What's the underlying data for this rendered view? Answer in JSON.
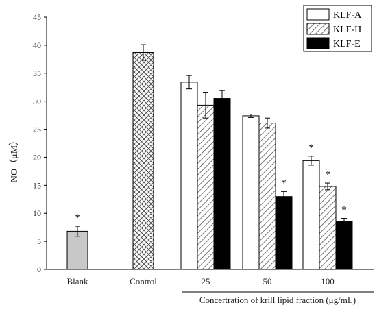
{
  "chart_data": {
    "type": "bar",
    "ylabel": "NO（μM）",
    "xlabel": "Concertration of krill lipid fraction (μg/mL)",
    "ylim": [
      0,
      45
    ],
    "yticks": [
      0,
      5,
      10,
      15,
      20,
      25,
      30,
      35,
      40,
      45
    ],
    "grid": false,
    "legend_position": "top-right",
    "categories": [
      "Blank",
      "Control",
      "25",
      "50",
      "100"
    ],
    "series": [
      {
        "name": "KLF-A",
        "fill": "white",
        "values": [
          null,
          null,
          33.4,
          27.4,
          19.4
        ],
        "errors": [
          null,
          null,
          1.2,
          0.3,
          0.8
        ],
        "significant": [
          false,
          false,
          false,
          false,
          true
        ]
      },
      {
        "name": "KLF-H",
        "fill": "hatch-diagonal",
        "values": [
          null,
          null,
          29.3,
          26.1,
          14.8
        ],
        "errors": [
          null,
          null,
          2.3,
          0.9,
          0.6
        ],
        "significant": [
          false,
          false,
          false,
          false,
          true
        ]
      },
      {
        "name": "KLF-E",
        "fill": "black",
        "values": [
          null,
          null,
          30.5,
          13.0,
          8.6
        ],
        "errors": [
          null,
          null,
          1.4,
          0.9,
          0.5
        ],
        "significant": [
          false,
          false,
          false,
          true,
          true
        ]
      }
    ],
    "single_bars": [
      {
        "category": "Blank",
        "value": 6.8,
        "error": 0.9,
        "fill": "gray",
        "significant": true
      },
      {
        "category": "Control",
        "value": 38.7,
        "error": 1.4,
        "fill": "crosshatch",
        "significant": false
      }
    ],
    "significance_symbol": "*",
    "colors": {
      "gray": "#c8c8c8",
      "black": "#000000",
      "white": "#ffffff",
      "stroke": "#000000"
    }
  }
}
